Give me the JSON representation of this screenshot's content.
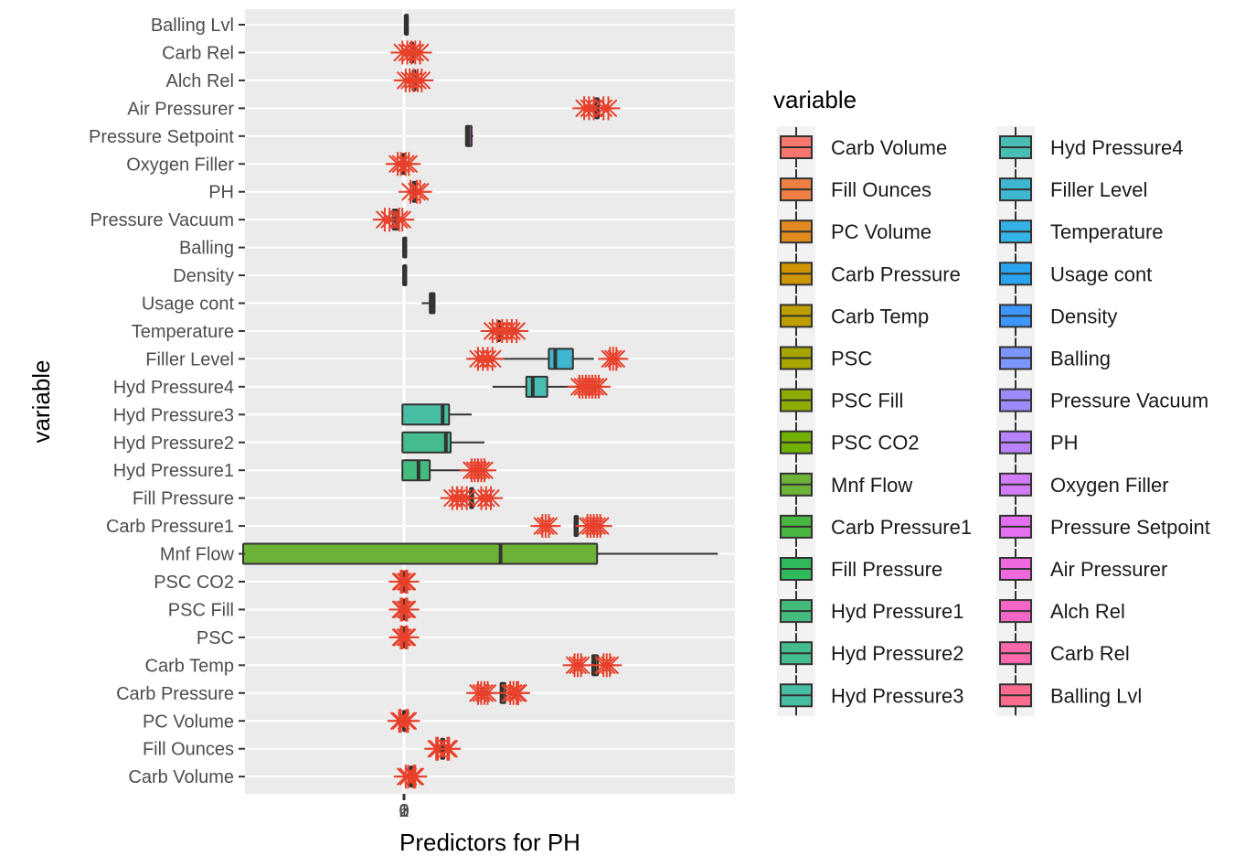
{
  "chart_data": {
    "type": "boxplot",
    "orientation": "horizontal",
    "xlabel": "Predictors for PH",
    "ylabel": "variable",
    "x_tick_labels": [
      "0",
      "2",
      "1",
      "0",
      "6"
    ],
    "grid": true,
    "background": "#EBEBEB",
    "legend": {
      "title": "variable",
      "placement": "right",
      "columns": 2
    },
    "outlier_color": "#E8412B",
    "categories": [
      {
        "name": "Carb Volume",
        "color": "#F8766D",
        "min": 0.35,
        "q1": 0.37,
        "median": 0.42,
        "q3": 0.47,
        "max": 0.5,
        "outliers": [
          0.1,
          0.25,
          0.6,
          0.7
        ]
      },
      {
        "name": "Fill Ounces",
        "color": "#EE8043",
        "min": 2.3,
        "q1": 2.3,
        "median": 2.4,
        "q3": 2.5,
        "max": 2.6,
        "outliers": [
          2.0,
          2.1,
          2.7,
          2.8
        ]
      },
      {
        "name": "PC Volume",
        "color": "#E1891E",
        "min": -0.1,
        "q1": -0.05,
        "median": 0.0,
        "q3": 0.05,
        "max": 0.1,
        "outliers": [
          -0.3,
          -0.2,
          0.15,
          0.25
        ]
      },
      {
        "name": "Carb Pressure",
        "color": "#D09400",
        "min": 6.0,
        "q1": 6.0,
        "median": 6.1,
        "q3": 6.3,
        "max": 6.3,
        "outliers": [
          4.6,
          4.8,
          5.0,
          5.2,
          6.6,
          6.8,
          7.0,
          7.1
        ]
      },
      {
        "name": "Carb Temp",
        "color": "#BD9E00",
        "min": 11.7,
        "q1": 11.7,
        "median": 11.85,
        "q3": 12.05,
        "max": 12.1,
        "outliers": [
          10.6,
          10.8,
          11.0,
          12.4,
          12.6,
          12.8
        ]
      },
      {
        "name": "PSC",
        "color": "#A7A500",
        "min": -0.05,
        "q1": -0.03,
        "median": 0.0,
        "q3": 0.03,
        "max": 0.05,
        "outliers": [
          -0.2,
          -0.1,
          0.1,
          0.2
        ]
      },
      {
        "name": "PSC Fill",
        "color": "#8EAB00",
        "min": -0.05,
        "q1": -0.03,
        "median": 0.0,
        "q3": 0.03,
        "max": 0.05,
        "outliers": [
          -0.2,
          -0.1,
          0.1,
          0.2
        ]
      },
      {
        "name": "PSC CO2",
        "color": "#6FB000",
        "min": -0.05,
        "q1": -0.03,
        "median": 0.0,
        "q3": 0.03,
        "max": 0.05,
        "outliers": [
          -0.2,
          -0.1,
          0.1,
          0.2
        ]
      },
      {
        "name": "Mnf Flow",
        "color": "#6BB237",
        "min": -10.0,
        "q1": -10.0,
        "median": 6.0,
        "q3": 12.0,
        "max": 19.5,
        "outliers": []
      },
      {
        "name": "Carb Pressure1",
        "color": "#49B541",
        "min": 10.6,
        "q1": 10.6,
        "median": 10.7,
        "q3": 10.8,
        "max": 10.8,
        "outliers": [
          8.6,
          8.8,
          9.0,
          11.4,
          11.6,
          11.8,
          12.0,
          12.2
        ]
      },
      {
        "name": "Fill Pressure",
        "color": "#2FB95B",
        "min": 4.1,
        "q1": 4.1,
        "median": 4.2,
        "q3": 4.3,
        "max": 4.3,
        "outliers": [
          3.0,
          3.3,
          3.6,
          3.9,
          4.8,
          5.1,
          5.4
        ]
      },
      {
        "name": "Hyd Pressure1",
        "color": "#43BB7D",
        "min": -0.1,
        "q1": -0.1,
        "median": 0.9,
        "q3": 1.6,
        "max": 4.0,
        "outliers": [
          4.2,
          4.4,
          4.6,
          4.8,
          5.0
        ]
      },
      {
        "name": "Hyd Pressure2",
        "color": "#45BC8D",
        "min": -0.1,
        "q1": -0.1,
        "median": 2.6,
        "q3": 2.9,
        "max": 5.0,
        "outliers": []
      },
      {
        "name": "Hyd Pressure3",
        "color": "#47BDA3",
        "min": -0.1,
        "q1": -0.1,
        "median": 2.4,
        "q3": 2.8,
        "max": 4.2,
        "outliers": []
      },
      {
        "name": "Hyd Pressure4",
        "color": "#48BDB4",
        "min": 5.5,
        "q1": 7.6,
        "median": 8.0,
        "q3": 8.9,
        "max": 11.0,
        "outliers": [
          10.9,
          11.1,
          11.3,
          11.5,
          11.7,
          11.9,
          12.1
        ]
      },
      {
        "name": "Filler Level",
        "color": "#3FB6D0",
        "min": 4.0,
        "q1": 9.0,
        "median": 9.4,
        "q3": 10.5,
        "max": 11.8,
        "outliers": [
          4.6,
          4.9,
          5.2,
          5.5,
          12.8,
          13.0,
          13.2
        ]
      },
      {
        "name": "Temperature",
        "color": "#36B3E6",
        "min": 5.8,
        "q1": 5.8,
        "median": 5.85,
        "q3": 5.9,
        "max": 5.95,
        "outliers": [
          5.5,
          5.8,
          6.1,
          6.4,
          6.7,
          7.0
        ]
      },
      {
        "name": "Usage cont",
        "color": "#2AA4F0",
        "min": 1.1,
        "q1": 1.6,
        "median": 1.75,
        "q3": 1.9,
        "max": 1.95,
        "outliers": []
      },
      {
        "name": "Density",
        "color": "#3D97FF",
        "min": -0.05,
        "q1": -0.03,
        "median": 0.0,
        "q3": 0.03,
        "max": 0.05,
        "outliers": []
      },
      {
        "name": "Balling",
        "color": "#7C96FF",
        "min": -0.05,
        "q1": -0.03,
        "median": 0.0,
        "q3": 0.03,
        "max": 0.05,
        "outliers": []
      },
      {
        "name": "Pressure Vacuum",
        "color": "#9C8CFF",
        "min": -0.7,
        "q1": -0.7,
        "median": -0.5,
        "q3": -0.4,
        "max": -0.3,
        "outliers": [
          -1.2,
          -0.9,
          -0.3,
          -0.1
        ]
      },
      {
        "name": "PH",
        "color": "#B983FF",
        "min": 0.5,
        "q1": 0.55,
        "median": 0.6,
        "q3": 0.7,
        "max": 0.75,
        "outliers": [
          0.4,
          0.8,
          1.0
        ]
      },
      {
        "name": "Oxygen Filler",
        "color": "#D27CF9",
        "min": -0.15,
        "q1": -0.1,
        "median": -0.05,
        "q3": 0.0,
        "max": 0.05,
        "outliers": [
          -0.4,
          -0.2,
          0.1,
          0.3
        ]
      },
      {
        "name": "Pressure Setpoint",
        "color": "#E46FF0",
        "min": 3.8,
        "q1": 3.85,
        "median": 4.0,
        "q3": 4.2,
        "max": 4.3,
        "outliers": []
      },
      {
        "name": "Air Pressurer",
        "color": "#EF68DD",
        "min": 11.9,
        "q1": 11.9,
        "median": 12.0,
        "q3": 12.1,
        "max": 12.2,
        "outliers": [
          11.2,
          11.5,
          11.8,
          12.4,
          12.7
        ]
      },
      {
        "name": "Alch Rel",
        "color": "#F566C7",
        "min": 0.5,
        "q1": 0.55,
        "median": 0.6,
        "q3": 0.65,
        "max": 0.7,
        "outliers": [
          0.1,
          0.35,
          0.6,
          0.85,
          1.1
        ]
      },
      {
        "name": "Carb Rel",
        "color": "#F868AB",
        "min": 0.35,
        "q1": 0.4,
        "median": 0.45,
        "q3": 0.5,
        "max": 0.55,
        "outliers": [
          -0.1,
          0.2,
          0.45,
          0.7,
          1.0
        ]
      },
      {
        "name": "Balling Lvl",
        "color": "#FA6B8C",
        "min": 0.05,
        "q1": 0.07,
        "median": 0.1,
        "q3": 0.13,
        "max": 0.15,
        "outliers": []
      }
    ]
  }
}
